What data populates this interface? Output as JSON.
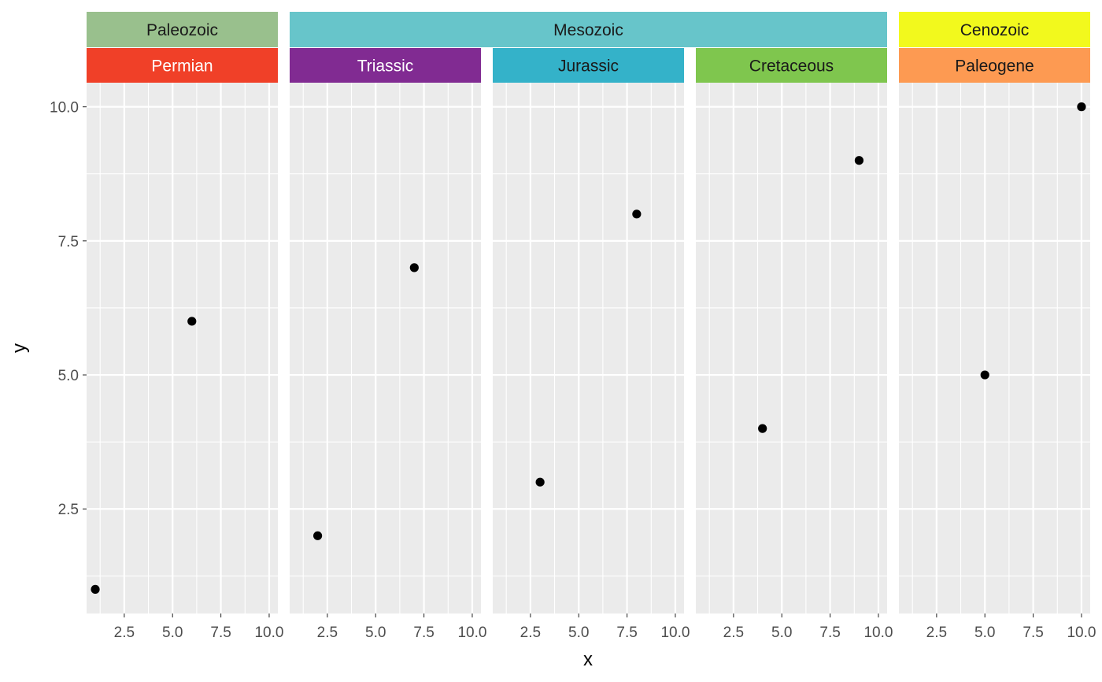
{
  "chart_data": {
    "type": "scatter",
    "xlabel": "x",
    "ylabel": "y",
    "xlim": [
      0.55,
      10.45
    ],
    "ylim": [
      0.55,
      10.45
    ],
    "x_ticks": [
      "2.5",
      "5.0",
      "7.5",
      "10.0"
    ],
    "y_ticks": [
      "2.5",
      "5.0",
      "7.5",
      "10.0"
    ],
    "grid": true,
    "eras": [
      {
        "name": "Paleozoic",
        "color": "#99C08D"
      },
      {
        "name": "Mesozoic",
        "color": "#67C5CA"
      },
      {
        "name": "Cenozoic",
        "color": "#F2F91D"
      }
    ],
    "panels": [
      {
        "period": "Permian",
        "era": "Paleozoic",
        "color": "#F04028",
        "text_color": "#ffffff",
        "points": [
          {
            "x": 1,
            "y": 1
          },
          {
            "x": 6,
            "y": 6
          }
        ]
      },
      {
        "period": "Triassic",
        "era": "Mesozoic",
        "color": "#812B92",
        "text_color": "#ffffff",
        "points": [
          {
            "x": 2,
            "y": 2
          },
          {
            "x": 7,
            "y": 7
          }
        ]
      },
      {
        "period": "Jurassic",
        "era": "Mesozoic",
        "color": "#34B2C9",
        "text_color": "#1a1a1a",
        "points": [
          {
            "x": 3,
            "y": 3
          },
          {
            "x": 8,
            "y": 8
          }
        ]
      },
      {
        "period": "Cretaceous",
        "era": "Mesozoic",
        "color": "#7FC64E",
        "text_color": "#1a1a1a",
        "points": [
          {
            "x": 4,
            "y": 4
          },
          {
            "x": 9,
            "y": 9
          }
        ]
      },
      {
        "period": "Paleogene",
        "era": "Cenozoic",
        "color": "#FD9A52",
        "text_color": "#1a1a1a",
        "points": [
          {
            "x": 5,
            "y": 5
          },
          {
            "x": 10,
            "y": 10
          }
        ]
      }
    ]
  }
}
